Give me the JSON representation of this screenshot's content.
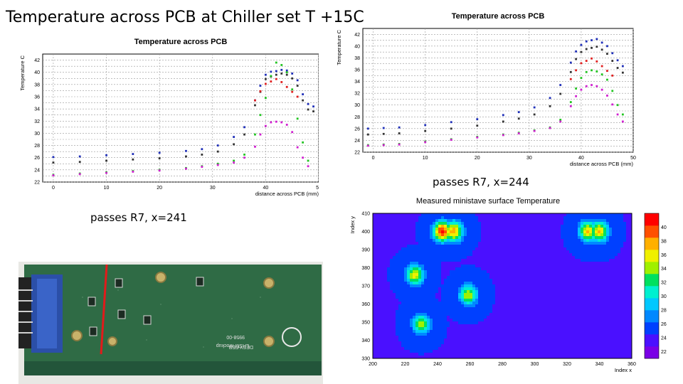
{
  "slide": {
    "title": "Temperature across PCB at Chiller set T +15C",
    "caption_left": "passes R7, x=241",
    "caption_right": "passes R7, x=244"
  },
  "chart_data": [
    {
      "type": "scatter",
      "title": "Temperature across PCB",
      "xlabel": "distance across PCB (mm)",
      "ylabel": "Temperature C",
      "xlim": [
        -2,
        50
      ],
      "ylim": [
        22,
        43
      ],
      "xticks": [
        0,
        10,
        20,
        30,
        40,
        50
      ],
      "yticks": [
        22,
        23,
        24,
        25,
        26,
        27,
        28,
        29,
        30,
        31,
        32,
        33,
        34,
        35,
        36,
        37,
        38,
        39,
        40,
        41,
        42
      ],
      "ytick_labels": [
        "22",
        "",
        "24",
        "",
        "26",
        "",
        "28",
        "",
        "30",
        "",
        "32",
        "",
        "34",
        "",
        "36",
        "",
        "38",
        "",
        "40",
        "",
        "42"
      ],
      "grid": true,
      "series": [
        {
          "color": "#1f2fb8",
          "x": [
            0,
            5,
            10,
            15,
            20,
            25,
            28,
            31,
            34,
            36,
            38,
            39,
            40,
            41,
            42,
            43,
            44,
            45,
            46,
            47,
            48,
            49
          ],
          "y": [
            26.1,
            26.2,
            26.4,
            26.6,
            26.8,
            27.1,
            27.4,
            28.0,
            29.4,
            31.0,
            35.4,
            37.8,
            39.6,
            40.1,
            40.2,
            40.4,
            40.3,
            39.8,
            38.7,
            36.4,
            34.8,
            34.4
          ]
        },
        {
          "color": "#333333",
          "x": [
            0,
            5,
            10,
            15,
            20,
            25,
            28,
            31,
            34,
            36,
            38,
            39,
            40,
            41,
            42,
            43,
            44,
            45,
            46,
            47,
            48,
            49
          ],
          "y": [
            25.2,
            25.3,
            25.5,
            25.7,
            25.9,
            26.2,
            26.5,
            27.0,
            28.2,
            29.8,
            34.6,
            36.8,
            38.9,
            39.3,
            39.6,
            39.8,
            39.6,
            39.0,
            37.8,
            35.4,
            33.9,
            33.6
          ]
        },
        {
          "color": "#e02020",
          "x": [
            38,
            39,
            40,
            41,
            42,
            43,
            44,
            45,
            46
          ],
          "y": [
            35.4,
            36.9,
            38.1,
            38.5,
            38.9,
            38.4,
            37.6,
            36.8,
            36.0
          ]
        },
        {
          "color": "#22c422",
          "x": [
            0,
            5,
            10,
            15,
            20,
            25,
            28,
            31,
            34,
            36,
            38,
            39,
            40,
            41,
            42,
            43,
            44,
            45,
            46,
            47,
            48
          ],
          "y": [
            23.2,
            23.4,
            23.6,
            23.8,
            24.0,
            24.3,
            24.6,
            25.0,
            25.5,
            26.5,
            29.8,
            33.0,
            35.8,
            39.4,
            41.6,
            41.2,
            40.0,
            37.2,
            32.4,
            28.5,
            25.5
          ]
        },
        {
          "color": "#d020d0",
          "x": [
            0,
            5,
            10,
            15,
            20,
            25,
            28,
            31,
            34,
            36,
            38,
            39,
            40,
            41,
            42,
            43,
            44,
            45,
            46,
            47,
            48
          ],
          "y": [
            23.1,
            23.3,
            23.5,
            23.7,
            23.9,
            24.2,
            24.5,
            24.8,
            25.2,
            26.0,
            27.8,
            29.8,
            31.2,
            31.8,
            31.9,
            31.8,
            31.4,
            30.2,
            27.7,
            26.0,
            24.6
          ]
        }
      ]
    },
    {
      "type": "scatter",
      "title": "Temperature across PCB",
      "xlabel": "distance across PCB (mm)",
      "ylabel": "Temperature C",
      "xlim": [
        -2,
        50
      ],
      "ylim": [
        22,
        43
      ],
      "xticks": [
        0,
        10,
        20,
        30,
        40,
        50
      ],
      "yticks": [
        22,
        23,
        24,
        25,
        26,
        27,
        28,
        29,
        30,
        31,
        32,
        33,
        34,
        35,
        36,
        37,
        38,
        39,
        40,
        41,
        42
      ],
      "ytick_labels": [
        "22",
        "",
        "24",
        "",
        "26",
        "",
        "28",
        "",
        "30",
        "",
        "32",
        "",
        "34",
        "",
        "36",
        "",
        "38",
        "",
        "40",
        "",
        "42"
      ],
      "grid": true,
      "series": [
        {
          "color": "#1f2fb8",
          "x": [
            -1,
            2,
            5,
            10,
            15,
            20,
            25,
            28,
            31,
            34,
            36,
            38,
            39,
            40,
            41,
            42,
            43,
            44,
            45,
            46,
            47,
            48
          ],
          "y": [
            26.0,
            26.1,
            26.2,
            26.6,
            27.1,
            27.6,
            28.3,
            28.8,
            29.6,
            31.2,
            33.4,
            37.2,
            39.1,
            40.2,
            40.8,
            41.0,
            41.2,
            40.6,
            40.0,
            38.8,
            37.6,
            36.6
          ]
        },
        {
          "color": "#333333",
          "x": [
            -1,
            2,
            5,
            10,
            15,
            20,
            25,
            28,
            31,
            34,
            36,
            38,
            39,
            40,
            41,
            42,
            43,
            44,
            45,
            46,
            47,
            48
          ],
          "y": [
            25.0,
            25.1,
            25.2,
            25.6,
            26.0,
            26.5,
            27.2,
            27.7,
            28.4,
            29.8,
            31.9,
            35.6,
            37.8,
            39.0,
            39.5,
            39.7,
            39.9,
            39.4,
            38.7,
            37.5,
            36.3,
            35.5
          ]
        },
        {
          "color": "#e02020",
          "x": [
            38,
            39,
            40,
            41,
            42,
            43,
            44,
            45,
            46
          ],
          "y": [
            34.4,
            35.9,
            37.1,
            37.5,
            37.9,
            37.4,
            36.6,
            35.8,
            35.0
          ]
        },
        {
          "color": "#22c422",
          "x": [
            -1,
            2,
            5,
            10,
            15,
            20,
            25,
            28,
            31,
            34,
            36,
            38,
            39,
            40,
            41,
            42,
            43,
            44,
            45,
            46,
            47,
            48
          ],
          "y": [
            23.2,
            23.3,
            23.4,
            23.8,
            24.2,
            24.6,
            25.0,
            25.3,
            25.7,
            26.2,
            27.5,
            30.5,
            32.8,
            34.6,
            35.6,
            35.9,
            35.7,
            35.2,
            34.3,
            32.4,
            30.0,
            28.4
          ]
        },
        {
          "color": "#d020d0",
          "x": [
            -1,
            2,
            5,
            10,
            15,
            20,
            25,
            28,
            31,
            34,
            36,
            38,
            39,
            40,
            41,
            42,
            43,
            44,
            45,
            46,
            47,
            48
          ],
          "y": [
            23.1,
            23.2,
            23.3,
            23.7,
            24.1,
            24.5,
            24.9,
            25.2,
            25.6,
            26.1,
            27.2,
            29.8,
            31.5,
            32.6,
            33.2,
            33.4,
            33.2,
            32.6,
            31.6,
            30.1,
            28.4,
            27.2
          ]
        }
      ]
    },
    {
      "type": "heatmap",
      "title": "Measured ministave surface Temperature",
      "xlabel": "Index x",
      "ylabel": "Index y",
      "xlim": [
        200,
        360
      ],
      "ylim": [
        330,
        410
      ],
      "xticks": [
        200,
        220,
        240,
        260,
        280,
        300,
        320,
        340,
        360
      ],
      "yticks": [
        330,
        340,
        350,
        360,
        370,
        380,
        390,
        400,
        410
      ],
      "zlim": [
        21,
        42
      ],
      "colorbar_ticks": [
        22,
        24,
        26,
        28,
        30,
        32,
        34,
        36,
        38,
        40
      ],
      "colorbar_colors": [
        "#7a00e6",
        "#4a10ff",
        "#0040ff",
        "#0088ff",
        "#00c8ff",
        "#00f0d0",
        "#00e060",
        "#a0f000",
        "#f0f000",
        "#ffb000",
        "#ff5000",
        "#ff0000"
      ],
      "background_levels": {
        "left": 24,
        "right": 22
      },
      "hotspots": [
        {
          "x": 243,
          "y": 400,
          "peak": 41
        },
        {
          "x": 250,
          "y": 400,
          "peak": 38
        },
        {
          "x": 333,
          "y": 400,
          "peak": 37
        },
        {
          "x": 340,
          "y": 400,
          "peak": 37
        },
        {
          "x": 226,
          "y": 376,
          "peak": 36
        },
        {
          "x": 259,
          "y": 365,
          "peak": 35
        },
        {
          "x": 230,
          "y": 349,
          "peak": 34
        }
      ]
    }
  ],
  "photo": {
    "board_color": "#2f6b45",
    "silkscreen": [
      "LHSM-Mockup",
      "9958-00",
      "DESY-FEB",
      "F4",
      "F5",
      "FX",
      "R7"
    ]
  }
}
